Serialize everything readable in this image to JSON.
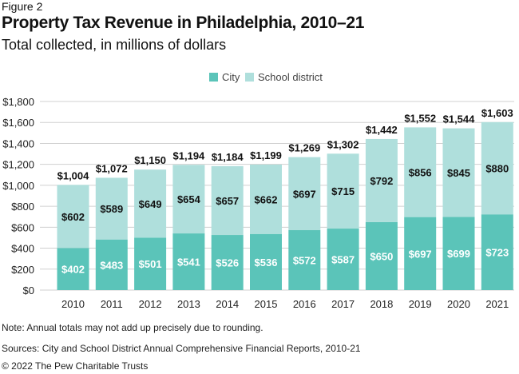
{
  "figure_label": "Figure 2",
  "chart_data": {
    "type": "bar",
    "stacked": true,
    "title": "Property Tax Revenue in Philadelphia, 2010–21",
    "subtitle": "Total collected, in millions of dollars",
    "categories": [
      "2010",
      "2011",
      "2012",
      "2013",
      "2014",
      "2015",
      "2016",
      "2017",
      "2018",
      "2019",
      "2020",
      "2021"
    ],
    "series": [
      {
        "name": "City",
        "color": "#5bc4b9",
        "values": [
          402,
          483,
          501,
          541,
          526,
          536,
          572,
          587,
          650,
          697,
          699,
          723
        ],
        "labels": [
          "$402",
          "$483",
          "$501",
          "$541",
          "$526",
          "$536",
          "$572",
          "$587",
          "$650",
          "$697",
          "$699",
          "$723"
        ]
      },
      {
        "name": "School district",
        "color": "#afdfdc",
        "values": [
          602,
          589,
          649,
          654,
          657,
          662,
          697,
          715,
          792,
          856,
          845,
          880
        ],
        "labels": [
          "$602",
          "$589",
          "$649",
          "$654",
          "$657",
          "$662",
          "$697",
          "$715",
          "$792",
          "$856",
          "$845",
          "$880"
        ]
      }
    ],
    "totals": [
      1004,
      1072,
      1150,
      1194,
      1184,
      1199,
      1269,
      1302,
      1442,
      1552,
      1544,
      1603
    ],
    "total_labels": [
      "$1,004",
      "$1,072",
      "$1,150",
      "$1,194",
      "$1,184",
      "$1,199",
      "$1,269",
      "$1,302",
      "$1,442",
      "$1,552",
      "$1,544",
      "$1,603"
    ],
    "ylim": [
      0,
      1800
    ],
    "yticks": [
      0,
      200,
      400,
      600,
      800,
      1000,
      1200,
      1400,
      1600,
      1800
    ],
    "ytick_labels": [
      "$0",
      "$200",
      "$400",
      "$600",
      "$800",
      "$1,000",
      "$1,200",
      "$1,400",
      "$1,600",
      "$1,800"
    ],
    "grid": true,
    "legend": "top-center",
    "xlabel": "",
    "ylabel": ""
  },
  "notes": {
    "note": "Note: Annual totals may not add up precisely due to rounding.",
    "sources": "Sources: City and School District Annual Comprehensive Financial Reports, 2010-21",
    "copyright": "© 2022 The Pew Charitable Trusts"
  }
}
